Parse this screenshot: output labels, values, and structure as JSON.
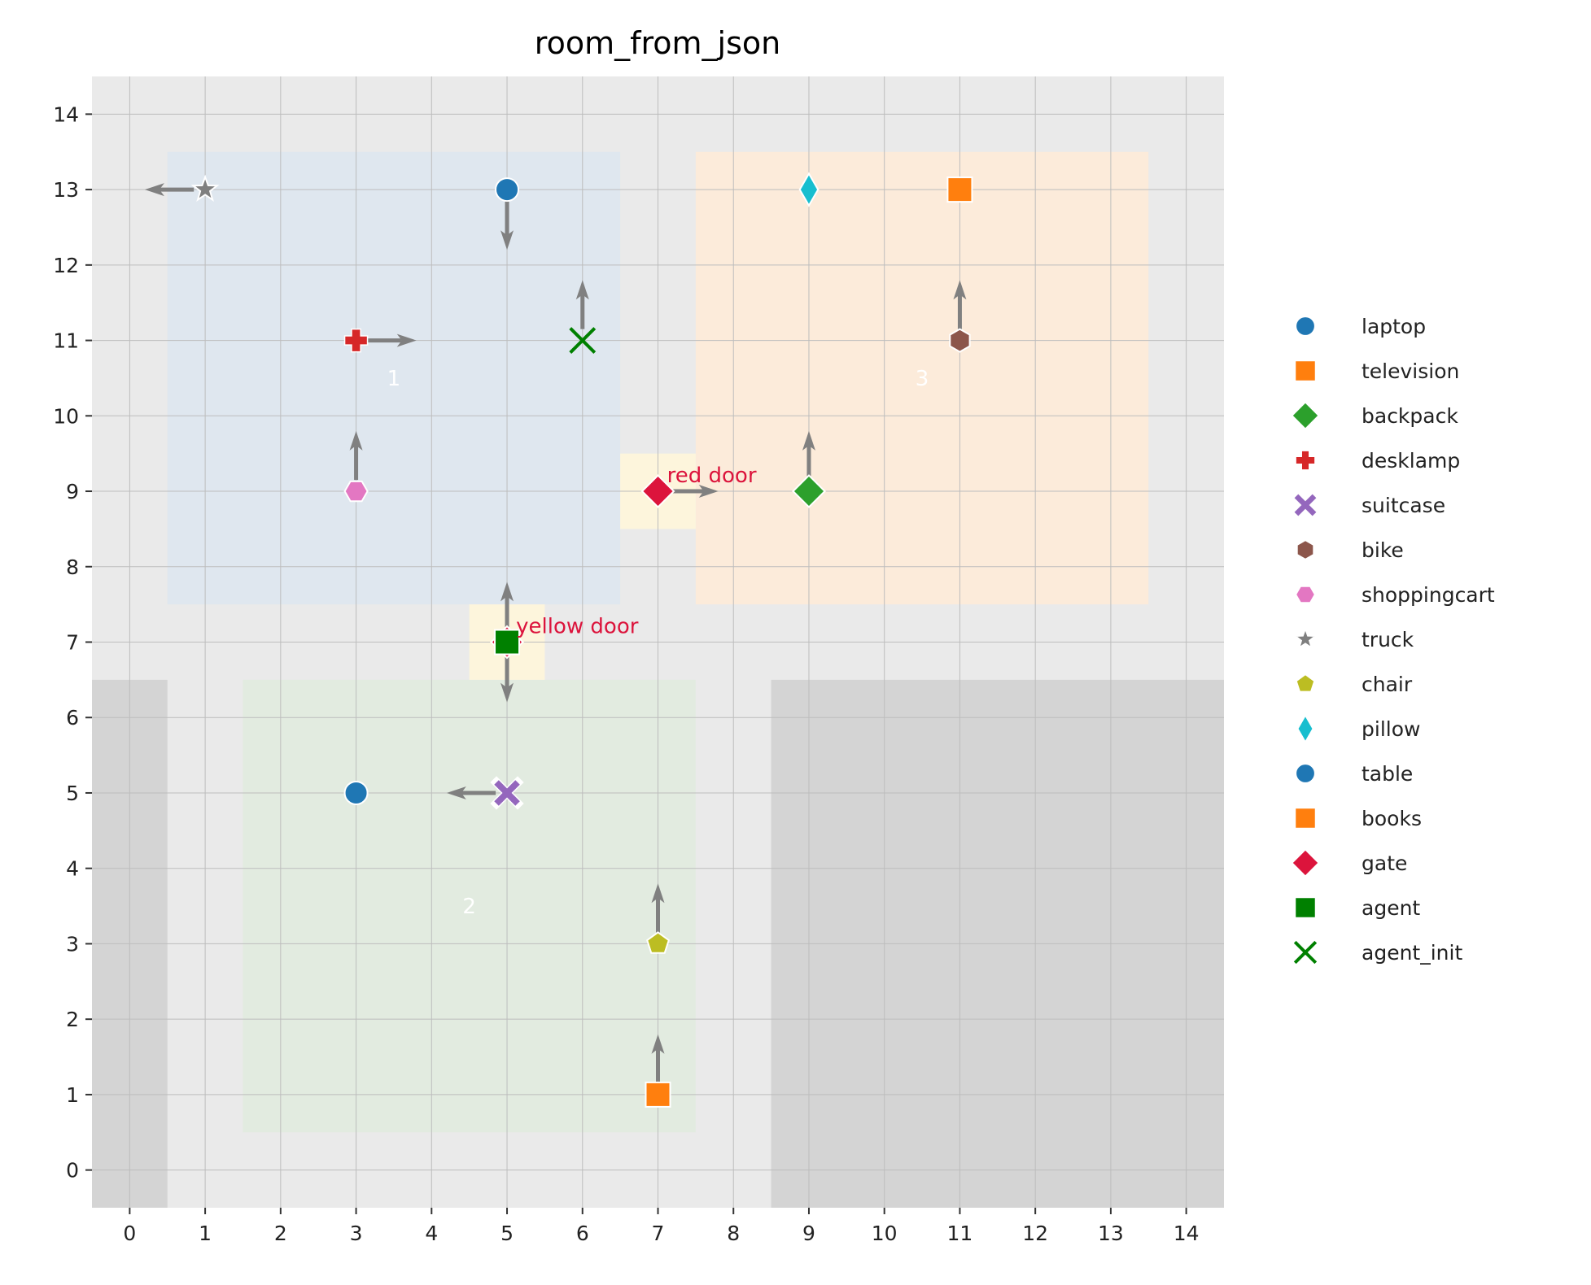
{
  "chart_data": {
    "type": "scatter",
    "title": "room_from_json",
    "xlim": [
      -0.5,
      14.5
    ],
    "ylim": [
      -0.5,
      14.5
    ],
    "xticks": [
      0,
      1,
      2,
      3,
      4,
      5,
      6,
      7,
      8,
      9,
      10,
      11,
      12,
      13,
      14
    ],
    "yticks": [
      0,
      1,
      2,
      3,
      4,
      5,
      6,
      7,
      8,
      9,
      10,
      11,
      12,
      13,
      14
    ],
    "grid": true,
    "legend_placement": "right",
    "background": "#eaeaea",
    "walls": [
      {
        "x": [
          -0.5,
          0.5
        ],
        "y": [
          -0.5,
          6.5
        ]
      },
      {
        "x": [
          8.5,
          14.5
        ],
        "y": [
          -0.5,
          6.5
        ]
      }
    ],
    "rooms": [
      {
        "label": "1",
        "x": [
          0.5,
          6.5
        ],
        "y": [
          7.5,
          13.5
        ],
        "color": "#dfe7ef",
        "label_pos": [
          3.5,
          10.5
        ]
      },
      {
        "label": "2",
        "x": [
          1.5,
          7.5
        ],
        "y": [
          0.5,
          6.5
        ],
        "color": "#e2ebe0",
        "label_pos": [
          4.5,
          3.5
        ]
      },
      {
        "label": "3",
        "x": [
          7.5,
          13.5
        ],
        "y": [
          7.5,
          13.5
        ],
        "color": "#fcebda",
        "label_pos": [
          10.5,
          10.5
        ]
      }
    ],
    "doors": [
      {
        "label": "red door",
        "x": 7,
        "y": 9,
        "color": "#fdf5dc"
      },
      {
        "label": "yellow door",
        "x": 5,
        "y": 7,
        "color": "#fdf5dc"
      }
    ],
    "door_label_color": "#dc143c",
    "objects": [
      {
        "name": "laptop",
        "marker": "circle",
        "color": "#1f77b4",
        "x": 5,
        "y": 13,
        "dir": [
          "down"
        ]
      },
      {
        "name": "television",
        "marker": "square",
        "color": "#ff7f0e",
        "x": 11,
        "y": 13,
        "dir": []
      },
      {
        "name": "backpack",
        "marker": "diamond",
        "color": "#2ca02c",
        "x": 9,
        "y": 9,
        "dir": [
          "up"
        ]
      },
      {
        "name": "desklamp",
        "marker": "plus",
        "color": "#d62728",
        "x": 3,
        "y": 11,
        "dir": [
          "right"
        ]
      },
      {
        "name": "suitcase",
        "marker": "x",
        "color": "#9467bd",
        "x": 5,
        "y": 5,
        "dir": [
          "left"
        ]
      },
      {
        "name": "bike",
        "marker": "hexagon",
        "color": "#8c564b",
        "x": 11,
        "y": 11,
        "dir": [
          "up"
        ]
      },
      {
        "name": "shoppingcart",
        "marker": "hexagon2",
        "color": "#e377c2",
        "x": 3,
        "y": 9,
        "dir": [
          "up"
        ]
      },
      {
        "name": "truck",
        "marker": "star",
        "color": "#7f7f7f",
        "x": 1,
        "y": 13,
        "dir": [
          "left"
        ]
      },
      {
        "name": "chair",
        "marker": "pentagon",
        "color": "#bcbd22",
        "x": 7,
        "y": 3,
        "dir": [
          "up"
        ]
      },
      {
        "name": "pillow",
        "marker": "thin_diamond",
        "color": "#17becf",
        "x": 9,
        "y": 13,
        "dir": []
      },
      {
        "name": "table",
        "marker": "circle",
        "color": "#1f77b4",
        "x": 3,
        "y": 5,
        "dir": []
      },
      {
        "name": "books",
        "marker": "square",
        "color": "#ff7f0e",
        "x": 7,
        "y": 1,
        "dir": [
          "up"
        ]
      },
      {
        "name": "gate",
        "marker": "diamond",
        "color": "#dc143c",
        "points": [
          {
            "x": 7,
            "y": 9,
            "dir": [
              "right"
            ]
          },
          {
            "x": 5,
            "y": 7,
            "dir": []
          }
        ]
      },
      {
        "name": "agent",
        "marker": "square",
        "color": "#008000",
        "x": 5,
        "y": 7,
        "dir": [
          "up",
          "down"
        ]
      },
      {
        "name": "agent_init",
        "marker": "xline",
        "color": "#008000",
        "x": 6,
        "y": 11,
        "dir": [
          "up"
        ]
      }
    ]
  }
}
